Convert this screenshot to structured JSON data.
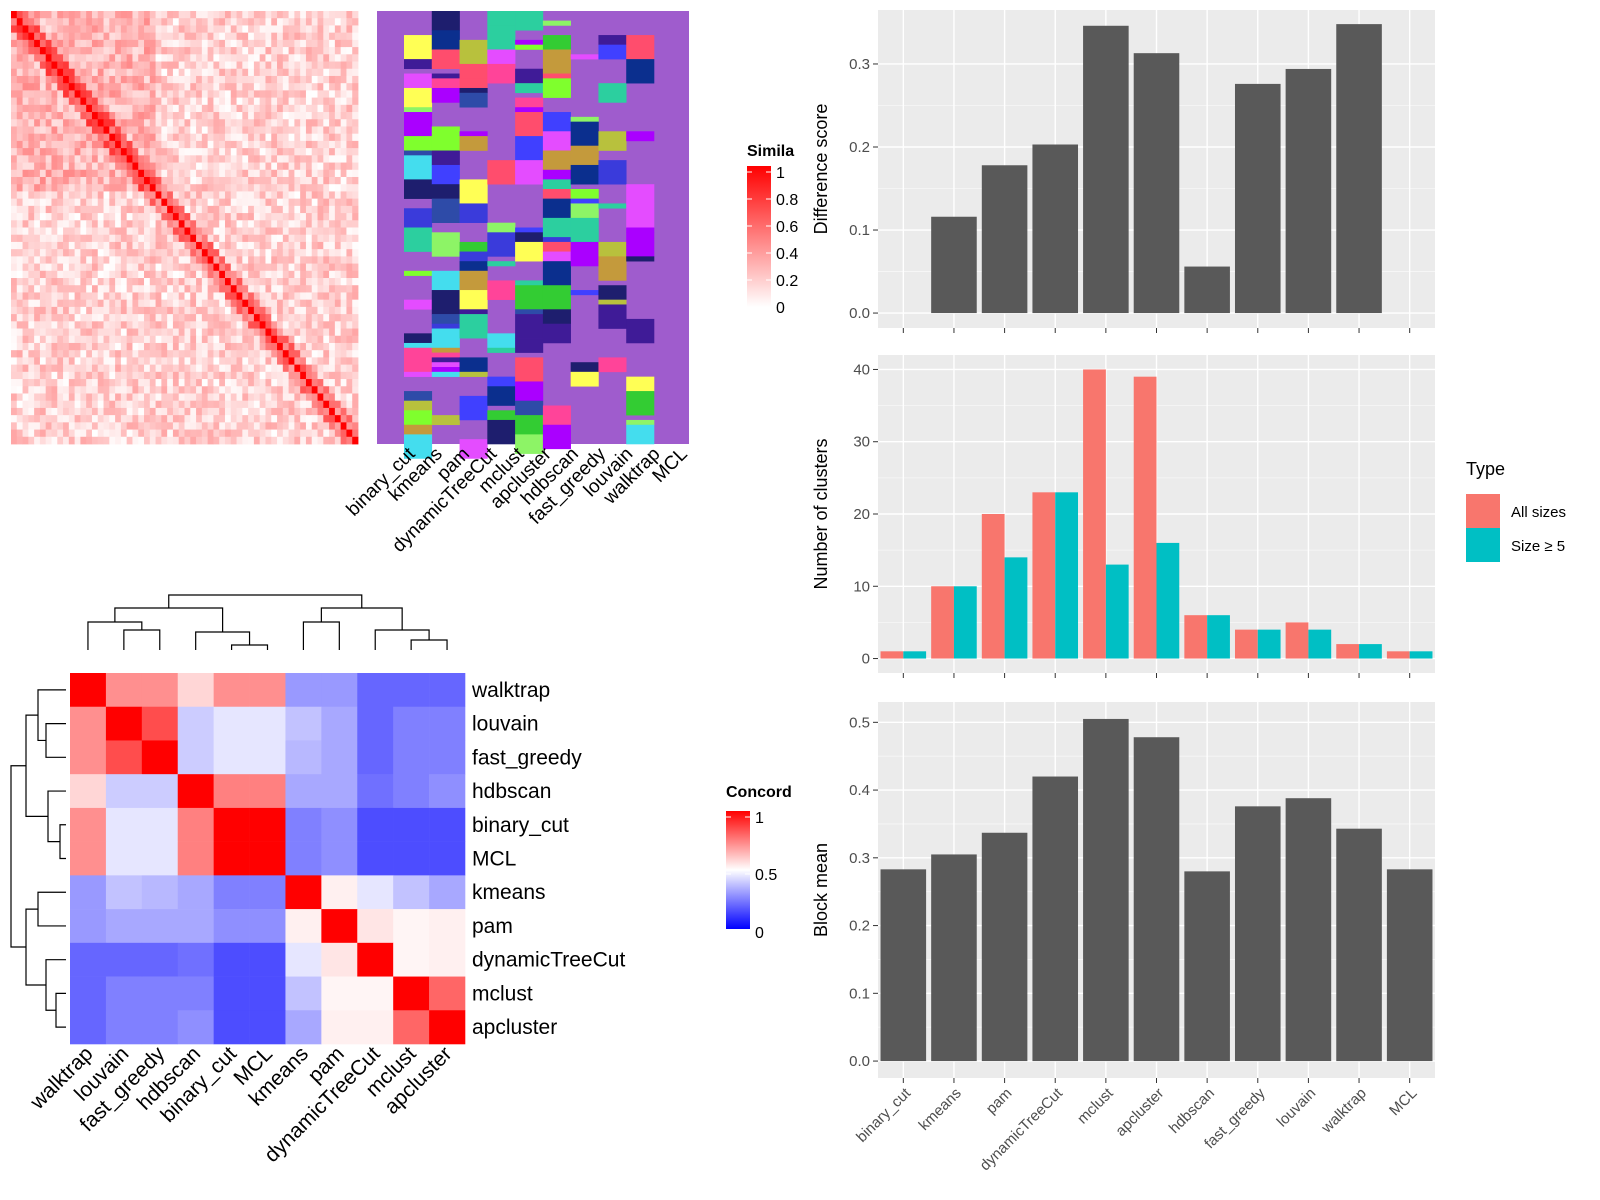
{
  "methods_panel_order": [
    "binary_cut",
    "kmeans",
    "pam",
    "dynamicTreeCut",
    "mclust",
    "apcluster",
    "hdbscan",
    "fast_greedy",
    "louvain",
    "walktrap",
    "MCL"
  ],
  "similarity_legend": {
    "title": "Simila",
    "ticks": [
      "1",
      "0.8",
      "0.6",
      "0.4",
      "0.2",
      "0"
    ],
    "colors": {
      "high": "#ff0000",
      "low": "#ffffff"
    }
  },
  "concordance_legend": {
    "title": "Concord",
    "ticks": [
      "1",
      "0.5",
      "0"
    ],
    "colors": {
      "high": "#ff0000",
      "mid": "#ffffff",
      "low": "#0000ff"
    }
  },
  "concordance_order": [
    "walktrap",
    "louvain",
    "fast_greedy",
    "hdbscan",
    "binary_cut",
    "MCL",
    "kmeans",
    "pam",
    "dynamicTreeCut",
    "mclust",
    "apcluster"
  ],
  "concordance_matrix": [
    [
      1.0,
      0.72,
      0.72,
      0.58,
      0.72,
      0.72,
      0.3,
      0.3,
      0.2,
      0.2,
      0.2
    ],
    [
      0.72,
      1.0,
      0.85,
      0.4,
      0.45,
      0.45,
      0.38,
      0.33,
      0.2,
      0.25,
      0.25
    ],
    [
      0.72,
      0.85,
      1.0,
      0.4,
      0.45,
      0.45,
      0.36,
      0.33,
      0.2,
      0.25,
      0.25
    ],
    [
      0.58,
      0.4,
      0.4,
      1.0,
      0.75,
      0.75,
      0.33,
      0.33,
      0.22,
      0.25,
      0.28
    ],
    [
      0.72,
      0.45,
      0.45,
      0.75,
      1.0,
      1.0,
      0.25,
      0.28,
      0.15,
      0.15,
      0.15
    ],
    [
      0.72,
      0.45,
      0.45,
      0.75,
      1.0,
      1.0,
      0.25,
      0.28,
      0.15,
      0.15,
      0.15
    ],
    [
      0.3,
      0.38,
      0.36,
      0.33,
      0.25,
      0.25,
      1.0,
      0.53,
      0.45,
      0.38,
      0.33
    ],
    [
      0.3,
      0.33,
      0.33,
      0.33,
      0.28,
      0.28,
      0.53,
      1.0,
      0.55,
      0.52,
      0.53
    ],
    [
      0.2,
      0.2,
      0.2,
      0.22,
      0.15,
      0.15,
      0.45,
      0.55,
      1.0,
      0.52,
      0.53
    ],
    [
      0.2,
      0.25,
      0.25,
      0.25,
      0.15,
      0.15,
      0.38,
      0.52,
      0.52,
      1.0,
      0.8
    ],
    [
      0.2,
      0.25,
      0.25,
      0.28,
      0.15,
      0.15,
      0.33,
      0.53,
      0.53,
      0.8,
      1.0
    ]
  ],
  "type_legend": {
    "title": "Type",
    "items": [
      {
        "label": "All sizes",
        "color": "#f8766d"
      },
      {
        "label": "Size ≥ 5",
        "color": "#00bfc4"
      }
    ]
  },
  "chart_data": [
    {
      "type": "bar",
      "ylabel": "Difference score",
      "categories": [
        "binary_cut",
        "kmeans",
        "pam",
        "dynamicTreeCut",
        "mclust",
        "apcluster",
        "hdbscan",
        "fast_greedy",
        "louvain",
        "walktrap",
        "MCL"
      ],
      "values": [
        0,
        0.116,
        0.178,
        0.203,
        0.346,
        0.313,
        0.056,
        0.276,
        0.294,
        0.348,
        0
      ],
      "ylim": [
        -0.018,
        0.365
      ],
      "yticks": [
        "0.0",
        "0.1",
        "0.2",
        "0.3"
      ],
      "yticks_values": [
        0,
        0.1,
        0.2,
        0.3
      ],
      "color": "#595959"
    },
    {
      "type": "bar",
      "ylabel": "Number of clusters",
      "categories": [
        "binary_cut",
        "kmeans",
        "pam",
        "dynamicTreeCut",
        "mclust",
        "apcluster",
        "hdbscan",
        "fast_greedy",
        "louvain",
        "walktrap",
        "MCL"
      ],
      "series": [
        {
          "name": "All sizes",
          "color": "#f8766d",
          "values": [
            1,
            10,
            20,
            23,
            40,
            39,
            6,
            4,
            5,
            2,
            1
          ]
        },
        {
          "name": "Size ≥ 5",
          "color": "#00bfc4",
          "values": [
            1,
            10,
            14,
            23,
            13,
            16,
            6,
            4,
            4,
            2,
            1
          ]
        }
      ],
      "ylim": [
        -2,
        42
      ],
      "yticks": [
        "0",
        "10",
        "20",
        "30",
        "40"
      ],
      "yticks_values": [
        0,
        10,
        20,
        30,
        40
      ]
    },
    {
      "type": "bar",
      "ylabel": "Block mean",
      "categories": [
        "binary_cut",
        "kmeans",
        "pam",
        "dynamicTreeCut",
        "mclust",
        "apcluster",
        "hdbscan",
        "fast_greedy",
        "louvain",
        "walktrap",
        "MCL"
      ],
      "values": [
        0.283,
        0.305,
        0.337,
        0.42,
        0.505,
        0.478,
        0.28,
        0.376,
        0.388,
        0.343,
        0.283
      ],
      "ylim": [
        -0.025,
        0.53
      ],
      "yticks": [
        "0.0",
        "0.1",
        "0.2",
        "0.3",
        "0.4",
        "0.5"
      ],
      "yticks_values": [
        0,
        0.1,
        0.2,
        0.3,
        0.4,
        0.5
      ],
      "color": "#595959"
    }
  ]
}
